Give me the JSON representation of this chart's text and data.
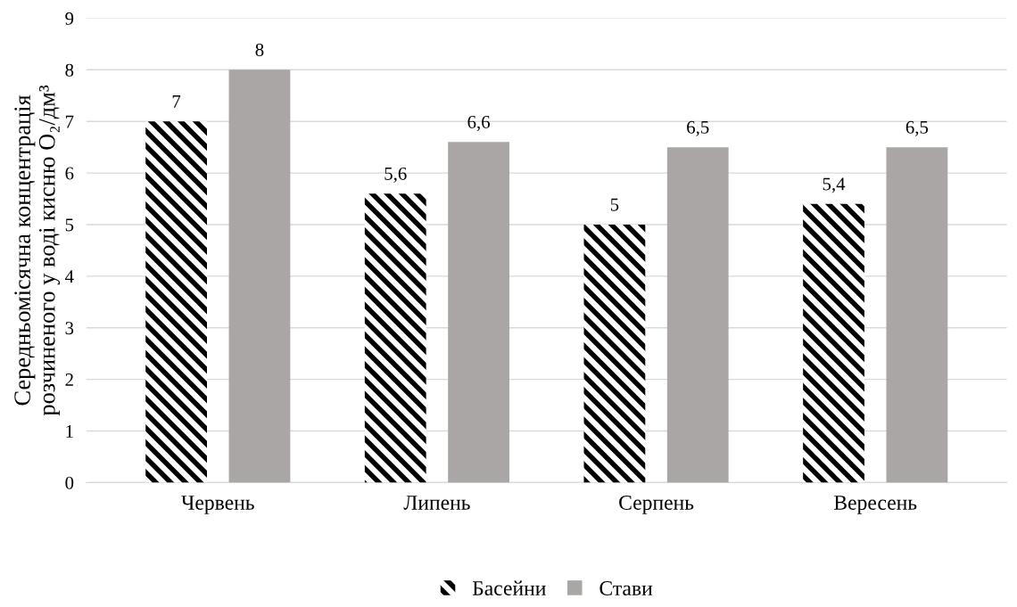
{
  "chart_data": {
    "type": "bar",
    "ylabel": "Середньомісячна концентрація\nрозчиненого у воді кисню O₂/дм³",
    "categories": [
      "Червень",
      "Липень",
      "Серпень",
      "Вересень"
    ],
    "series": [
      {
        "name": "Басейни",
        "color": "#000000",
        "values": [
          7,
          5.6,
          5,
          5.4
        ],
        "value_labels": [
          "7",
          "5,6",
          "5",
          "5,4"
        ]
      },
      {
        "name": "Стави",
        "color": "#aaa6a6",
        "values": [
          8,
          6.6,
          6.5,
          6.5
        ],
        "value_labels": [
          "8",
          "6,6",
          "6,5",
          "6,5"
        ]
      }
    ],
    "ylim": [
      0,
      9
    ],
    "yticks": [
      0,
      1,
      2,
      3,
      4,
      5,
      6,
      7,
      8,
      9
    ],
    "grid": "y",
    "legend": "bottom"
  }
}
